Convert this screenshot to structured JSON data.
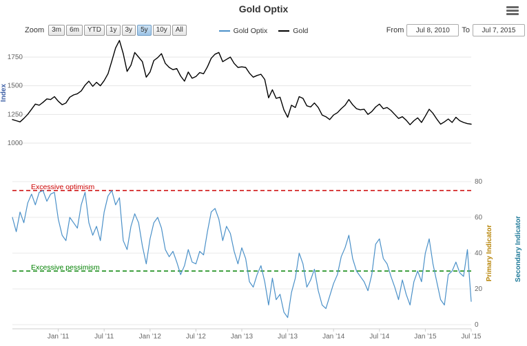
{
  "header": {
    "title": "Gold Optix"
  },
  "menu": {
    "icon": "hamburger-icon"
  },
  "toolbar": {
    "zoom_label": "Zoom",
    "zoom_buttons": [
      "3m",
      "6m",
      "YTD",
      "1y",
      "3y",
      "5y",
      "10y",
      "All"
    ],
    "selected_zoom": "5y",
    "from_label": "From",
    "from_value": "Jul 8, 2010",
    "to_label": "To",
    "to_value": "Jul 7, 2015"
  },
  "legend": [
    {
      "label": "Gold Optix",
      "color": "#4a90c8"
    },
    {
      "label": "Gold",
      "color": "#000000"
    }
  ],
  "chart_data": {
    "type": "line",
    "x_range": [
      "Jul 8, 2010",
      "Jul 7, 2015"
    ],
    "x_tick_labels": [
      "Jan ’11",
      "Jul ’11",
      "Jan ’12",
      "Jul ’12",
      "Jan ’13",
      "Jul ’13",
      "Jan ’14",
      "Jul ’14",
      "Jan ’15",
      "Jul ’15"
    ],
    "panes": [
      {
        "ylabel": "Index",
        "ylabel_color": "#3d5fa5",
        "yticks": [
          1000,
          1250,
          1500,
          1750
        ],
        "ylim": [
          950,
          1950
        ],
        "grid": true,
        "series": [
          {
            "name": "Gold",
            "color": "#000000",
            "values": [
              1205,
              1195,
              1185,
              1215,
              1250,
              1295,
              1340,
              1330,
              1355,
              1385,
              1380,
              1405,
              1365,
              1335,
              1350,
              1400,
              1420,
              1430,
              1455,
              1505,
              1540,
              1495,
              1530,
              1500,
              1545,
              1605,
              1715,
              1830,
              1895,
              1780,
              1625,
              1680,
              1790,
              1750,
              1710,
              1575,
              1620,
              1720,
              1745,
              1780,
              1695,
              1660,
              1640,
              1650,
              1585,
              1540,
              1620,
              1565,
              1580,
              1615,
              1605,
              1665,
              1740,
              1775,
              1790,
              1710,
              1730,
              1750,
              1695,
              1660,
              1665,
              1660,
              1610,
              1575,
              1590,
              1600,
              1555,
              1395,
              1465,
              1390,
              1400,
              1290,
              1225,
              1330,
              1310,
              1405,
              1390,
              1325,
              1315,
              1350,
              1310,
              1245,
              1230,
              1205,
              1245,
              1265,
              1300,
              1330,
              1380,
              1335,
              1300,
              1290,
              1295,
              1250,
              1275,
              1315,
              1340,
              1300,
              1310,
              1285,
              1250,
              1215,
              1230,
              1200,
              1160,
              1195,
              1220,
              1180,
              1235,
              1295,
              1260,
              1210,
              1165,
              1185,
              1210,
              1180,
              1225,
              1195,
              1180,
              1170,
              1165
            ]
          }
        ]
      },
      {
        "yticks": [
          0,
          20,
          40,
          60,
          80
        ],
        "ylim": [
          0,
          85
        ],
        "grid": true,
        "right_axis_titles": [
          {
            "label": "Primary Indicator",
            "color": "#b8860b"
          },
          {
            "label": "Secondary Indicator",
            "color": "#1f7a99"
          }
        ],
        "thresholds": [
          {
            "label": "Excessive optimism",
            "value": 75,
            "color": "#cc0000",
            "style": "dashed"
          },
          {
            "label": "Excessive pessimism",
            "value": 30,
            "color": "#008000",
            "style": "dashed"
          }
        ],
        "series": [
          {
            "name": "Gold Optix",
            "color": "#4a90c8",
            "values": [
              60,
              52,
              63,
              57,
              68,
              73,
              67,
              74,
              75,
              69,
              73,
              74,
              59,
              50,
              47,
              60,
              57,
              54,
              67,
              74,
              57,
              50,
              55,
              47,
              63,
              72,
              75,
              67,
              71,
              47,
              42,
              55,
              62,
              57,
              44,
              34,
              48,
              57,
              60,
              54,
              42,
              38,
              41,
              35,
              28,
              33,
              42,
              35,
              34,
              41,
              39,
              52,
              63,
              65,
              59,
              47,
              55,
              51,
              41,
              34,
              43,
              37,
              24,
              21,
              28,
              33,
              24,
              11,
              26,
              14,
              17,
              7,
              4,
              18,
              26,
              40,
              34,
              21,
              25,
              31,
              19,
              11,
              9,
              16,
              23,
              28,
              38,
              43,
              50,
              37,
              30,
              27,
              24,
              19,
              28,
              45,
              48,
              37,
              34,
              27,
              21,
              14,
              25,
              17,
              11,
              24,
              30,
              24,
              40,
              48,
              34,
              24,
              14,
              11,
              28,
              30,
              35,
              29,
              27,
              42,
              13
            ]
          }
        ]
      }
    ]
  }
}
